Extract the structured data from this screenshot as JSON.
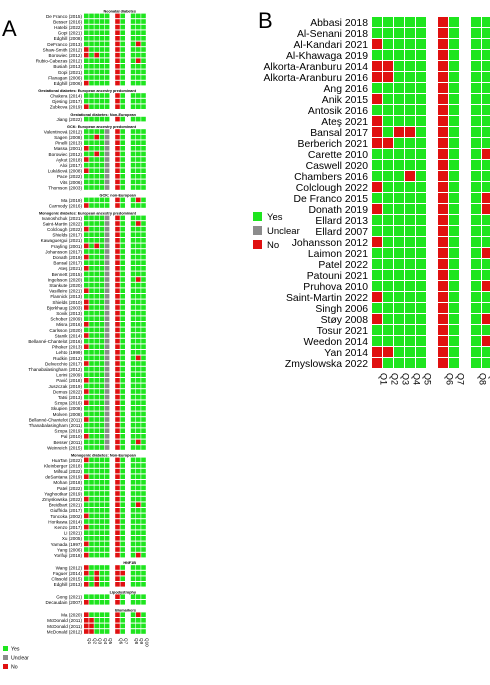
{
  "panels": {
    "a": "A",
    "b": "B"
  },
  "colors": {
    "yes": "#1ee51e",
    "unclear": "#8c8c8c",
    "no": "#e01010",
    "gap": "#ffffff"
  },
  "legend": [
    {
      "key": "yes",
      "label": "Yes"
    },
    {
      "key": "unclear",
      "label": "Unclear"
    },
    {
      "key": "no",
      "label": "No"
    }
  ],
  "chart_data": [
    {
      "type": "heatmap",
      "panel": "A",
      "questions": [
        "Q1",
        "Q2",
        "Q3",
        "Q4",
        "Q5",
        "Q6",
        "Q7",
        "Q8",
        "Q9",
        "Q10"
      ],
      "legend_placement": "bottom-left",
      "groups": [
        {
          "title": "Neonatal diabetes",
          "rows": [
            {
              "study": "De Franco (2015)",
              "cells": "YYYYYNYYYY"
            },
            {
              "study": "Besser (2016)",
              "cells": "YYYYYNYYYY"
            },
            {
              "study": "Hatebi (2022)",
              "cells": "YYYYYNYYYY"
            },
            {
              "study": "Gopi (2021)",
              "cells": "YYYYYNYYYY"
            },
            {
              "study": "Edghill (2008)",
              "cells": "YYYYYNYYYY"
            },
            {
              "study": "DeFranco (2013)",
              "cells": "YYYYYNYYNY"
            },
            {
              "study": "Shaw-Smith (2012)",
              "cells": "NYYYYNYYYY"
            },
            {
              "study": "Borowiec (2012)",
              "cells": "NYNYYNYYYY"
            },
            {
              "study": "Rubio-Cabezas (2012)",
              "cells": "YYYYYNYYNY"
            },
            {
              "study": "Busiah (2013)",
              "cells": "YYYYYNYYYY"
            },
            {
              "study": "Gopi (2021)",
              "cells": "YYYYYNYYYY"
            },
            {
              "study": "Flanagan (2006)",
              "cells": "YYYYYNYYYY"
            },
            {
              "study": "Edghill (2006)",
              "cells": "NYYYYNYYYY"
            }
          ]
        },
        {
          "title": "Gestational diabetes: European ancestry predominant",
          "rows": [
            {
              "study": "Chakera (2014)",
              "cells": "YYYYYNYYYY"
            },
            {
              "study": "Gjesing (2017)",
              "cells": "YYYYYNYYYY"
            },
            {
              "study": "Zubkova (2019)",
              "cells": "NYYYYNYYYY"
            }
          ]
        },
        {
          "title": "Gestational diabetes: Non-European",
          "rows": [
            {
              "study": "Jiang (2022)",
              "cells": "YYYYYNYYYY"
            }
          ]
        },
        {
          "title": "GCK: European ancestry predominant",
          "rows": [
            {
              "study": "Valentinová (2012)",
              "cells": "YYYYUNYYYY"
            },
            {
              "study": "Sagen (2008)",
              "cells": "YYNYUNYYYY"
            },
            {
              "study": "Pinelli (2013)",
              "cells": "YYYYUNYYYY"
            },
            {
              "study": "Massa (2001)",
              "cells": "NYYYUNYYYY"
            },
            {
              "study": "Borowiec (2012)",
              "cells": "YYNYUNYYYY"
            },
            {
              "study": "Aykut (2018)",
              "cells": "NYYYUNYYYY"
            },
            {
              "study": "Aloi (2017)",
              "cells": "YYYYUNYYYY"
            },
            {
              "study": "Lukášová (2008)",
              "cells": "NYYYUNYYYY"
            },
            {
              "study": "Pace (2022)",
              "cells": "YYYYUNYYYY"
            },
            {
              "study": "Vits (2006)",
              "cells": "YYYYUNYYYY"
            },
            {
              "study": "Thomson (2003)",
              "cells": "YYYYUNYYYY"
            }
          ]
        },
        {
          "title": "GCK: non-European",
          "rows": [
            {
              "study": "Ma (2019)",
              "cells": "YYYYYNYYNY"
            },
            {
              "study": "Carmody (2016)",
              "cells": "NYYYYNYYYY"
            }
          ]
        },
        {
          "title": "Monogenic diabetes: European ancestry predominant",
          "rows": [
            {
              "study": "Ivanoshchuk (2021)",
              "cells": "YYYYUNYYYY"
            },
            {
              "study": "Saint-Martin (2022)",
              "cells": "YYYYUNYYNY"
            },
            {
              "study": "Colclough (2022)",
              "cells": "NYYYUNYYYY"
            },
            {
              "study": "Shields (2017)",
              "cells": "YYYYUNYYYY"
            },
            {
              "study": "Kawaguergui (2021)",
              "cells": "YYYYUNYYYY"
            },
            {
              "study": "Frayling (2001)",
              "cells": "NYNYUNYYYY"
            },
            {
              "study": "Johansson (2017)",
              "cells": "YYYYUNYYYY"
            },
            {
              "study": "Donath (2019)",
              "cells": "NYYYUNYYYY"
            },
            {
              "study": "Bansal (2017)",
              "cells": "YYYYUNYYYY"
            },
            {
              "study": "Ateş (2021)",
              "cells": "NYYYUNYYYY"
            },
            {
              "study": "Bennett (2015)",
              "cells": "YYYYUNYYYY"
            },
            {
              "study": "Ingelsson (2020)",
              "cells": "YYYYUNYYNY"
            },
            {
              "study": "Stankute (2020)",
              "cells": "YYYYUNYYYY"
            },
            {
              "study": "Vasilleire (2021)",
              "cells": "NYYYUNYYYY"
            },
            {
              "study": "Flannick (2013)",
              "cells": "YYYYUNYYYY"
            },
            {
              "study": "Shields (2010)",
              "cells": "NYYYUNYYYY"
            },
            {
              "study": "Bjorkhaug (2003)",
              "cells": "NYYYUNYYYY"
            },
            {
              "study": "Sovik (2013)",
              "cells": "YYYYUNYYYY"
            },
            {
              "study": "Schober (2009)",
              "cells": "YYYYUNYYYY"
            },
            {
              "study": "Misra (2016)",
              "cells": "NYYYUNYYYY"
            },
            {
              "study": "Carlsson (2020)",
              "cells": "YYYYUNYYYY"
            },
            {
              "study": "Stanik (2014)",
              "cells": "NYYYUNYYYY"
            },
            {
              "study": "Bellanné-Chantelot (2016)",
              "cells": "YYYYUNYYYY"
            },
            {
              "study": "Pihoker (2013)",
              "cells": "NYYYUNYYYY"
            },
            {
              "study": "Lehto (1999)",
              "cells": "YYYYUNYYYY"
            },
            {
              "study": "Rudkin (2012)",
              "cells": "YYYYUNYYNY"
            },
            {
              "study": "Delvecchio (2017)",
              "cells": "NYYYUNYYYY"
            },
            {
              "study": "Thanabalasingham (2012)",
              "cells": "YYYYUNYYYY"
            },
            {
              "study": "Lorini (2009)",
              "cells": "YYYYUNYYYY"
            },
            {
              "study": "Pavić (2018)",
              "cells": "NYYYUNYYYY"
            },
            {
              "study": "Juszczak (2019)",
              "cells": "YYYYUNYYYY"
            },
            {
              "study": "Demus (2022)",
              "cells": "NYYYUNYYYY"
            },
            {
              "study": "Tatsi (2013)",
              "cells": "YYYYUNYYYY"
            },
            {
              "study": "Szopa (2016)",
              "cells": "NYYYUNYYYY"
            },
            {
              "study": "Skupien (2008)",
              "cells": "YYYYUNYYYY"
            },
            {
              "study": "Molven (2008)",
              "cells": "YYYYUNYYYY"
            },
            {
              "study": "Bellanné-Chantelot (2011)",
              "cells": "NYYYUNYYYY"
            },
            {
              "study": "Thanabalasingham (2011)",
              "cells": "YYYYUNYYYY"
            },
            {
              "study": "Szopa (2019)",
              "cells": "YYYYUNYYYY"
            },
            {
              "study": "Pal (2010)",
              "cells": "NYYYUNYYYY"
            },
            {
              "study": "Besser (2011)",
              "cells": "YYYYUNYYNY"
            },
            {
              "study": "Weinreich (2015)",
              "cells": "YYYYUNYYYY"
            }
          ]
        },
        {
          "title": "Monogenic diabetes: Non-European",
          "rows": [
            {
              "study": "HuaTan (2022)",
              "cells": "NYYYYNYYYY"
            },
            {
              "study": "Kleinberger (2018)",
              "cells": "YYYYYNYYYY"
            },
            {
              "study": "Mifsud (2022)",
              "cells": "YYYYYNYYYY"
            },
            {
              "study": "deSantana (2019)",
              "cells": "NYYYYNYYYY"
            },
            {
              "study": "Mohan (2018)",
              "cells": "YYYYYNYYYY"
            },
            {
              "study": "Patel (2022)",
              "cells": "YYYYYNYYYY"
            },
            {
              "study": "Yaghootkar (2019)",
              "cells": "YYYYYNYYYY"
            },
            {
              "study": "Zmysłowska (2022)",
              "cells": "NYYYYNYYYY"
            },
            {
              "study": "Breidbart (2021)",
              "cells": "YYYYYNYYNY"
            },
            {
              "study": "Giuffrida (2017)",
              "cells": "YYYYYNYYYY"
            },
            {
              "study": "Toncoka (2002)",
              "cells": "NYYYYNYYYY"
            },
            {
              "study": "Horikawa (2014)",
              "cells": "YYYYYNYYYY"
            },
            {
              "study": "Kenzo (2017)",
              "cells": "NYYYYNYYYY"
            },
            {
              "study": "Li (2021)",
              "cells": "YYYYYNYYYY"
            },
            {
              "study": "Xu (2005)",
              "cells": "YYYYYNYYYY"
            },
            {
              "study": "Yamada (1997)",
              "cells": "NYYYYNYYYY"
            },
            {
              "study": "Yang (2006)",
              "cells": "YYYYYNYYYY"
            },
            {
              "study": "Yorifuji (2018)",
              "cells": "NYYYYNYYNY"
            }
          ]
        },
        {
          "title": "HNF1B",
          "rows": [
            {
              "study": "Wang (2012)",
              "cells": "NYYYYNYYYY"
            },
            {
              "study": "Faguer (2014)",
              "cells": "NYNYYNNYYY"
            },
            {
              "study": "Clissold (2015)",
              "cells": "YYNYYNYYYY"
            },
            {
              "study": "Edghill (2013)",
              "cells": "NYNYYNNYYY"
            }
          ]
        },
        {
          "title": "Lipodystrophy",
          "rows": [
            {
              "study": "Gong (2021)",
              "cells": "YYYYYNYYYY"
            },
            {
              "study": "Decaudain (2007)",
              "cells": "NYYYYNYYYY"
            }
          ]
        },
        {
          "title": "Biomarkers",
          "rows": [
            {
              "study": "Ma (2020)",
              "cells": "NYYYYNYYNY"
            },
            {
              "study": "McDonald (2011)",
              "cells": "NNYYYNYYYY"
            },
            {
              "study": "McDonald (2011)",
              "cells": "NNYYYNYYYY"
            },
            {
              "study": "McDonald (2012)",
              "cells": "NNYYYNYYYY"
            }
          ]
        }
      ]
    },
    {
      "type": "heatmap",
      "panel": "B",
      "questions": [
        "Q1",
        "Q2",
        "Q3",
        "Q4",
        "Q5",
        "Q6",
        "Q7",
        "Q8",
        "Q9",
        "Q10"
      ],
      "legend_placement": "left",
      "rows": [
        {
          "study": "Abbasi 2018",
          "cells": "YYYYYNYYYY"
        },
        {
          "study": "Al-Senani 2018",
          "cells": "YYYYYNYYYY"
        },
        {
          "study": "Al-Kandari 2021",
          "cells": "NYYYYNYYYY"
        },
        {
          "study": "Al-Khawaga 2019",
          "cells": "YYYYYNYYYY"
        },
        {
          "study": "Alkorta-Aranburu 2014",
          "cells": "NNYYYNYYYY"
        },
        {
          "study": "Alkorta-Aranburu 2016",
          "cells": "NNYYYNYYYY"
        },
        {
          "study": "Ang 2016",
          "cells": "YYYYYNYYYY"
        },
        {
          "study": "Anik 2015",
          "cells": "NYYYYNYYYY"
        },
        {
          "study": "Antosik 2016",
          "cells": "YYYYYNYYYY"
        },
        {
          "study": "Ateş 2021",
          "cells": "NYYYYNYYYY"
        },
        {
          "study": "Bansal 2017",
          "cells": "NYNNYNYYYY"
        },
        {
          "study": "Berberich 2021",
          "cells": "NNYYYNYYYY"
        },
        {
          "study": "Carette 2010",
          "cells": "YYYYYNYYNY"
        },
        {
          "study": "Caswell 2020",
          "cells": "YYYYYNYYYY"
        },
        {
          "study": "Chambers 2016",
          "cells": "YYYNYNYYYY"
        },
        {
          "study": "Colclough 2022",
          "cells": "NYYYYNYYYY"
        },
        {
          "study": "De Franco 2015",
          "cells": "YYYYYNYYNY"
        },
        {
          "study": "Donath 2019",
          "cells": "NYYYYNYYNY"
        },
        {
          "study": "Ellard 2013",
          "cells": "YYYYYNYYYY"
        },
        {
          "study": "Ellard 2007",
          "cells": "YYYYYNYYYY"
        },
        {
          "study": "Johansson 2012",
          "cells": "NYYYYNYYYY"
        },
        {
          "study": "Laimon 2021",
          "cells": "YYYYYNYYNY"
        },
        {
          "study": "Patel 2022",
          "cells": "YYYYYNYYYY"
        },
        {
          "study": "Patouni 2021",
          "cells": "YYYYYNYYYY"
        },
        {
          "study": "Pruhova 2010",
          "cells": "YYYYYNYYNY"
        },
        {
          "study": "Saint-Martin 2022",
          "cells": "NYYYYNYYYY"
        },
        {
          "study": "Singh 2006",
          "cells": "YYYYYNYYYY"
        },
        {
          "study": "Støy 2008",
          "cells": "NYYYYNYYNY"
        },
        {
          "study": "Tosur 2021",
          "cells": "YYYYYNYYYY"
        },
        {
          "study": "Weedon 2014",
          "cells": "YYYYYNYYNY"
        },
        {
          "study": "Yan 2014",
          "cells": "NNYYYNYYYY"
        },
        {
          "study": "Zmyslowska 2022",
          "cells": "NYYYYNYYYY"
        }
      ]
    }
  ]
}
